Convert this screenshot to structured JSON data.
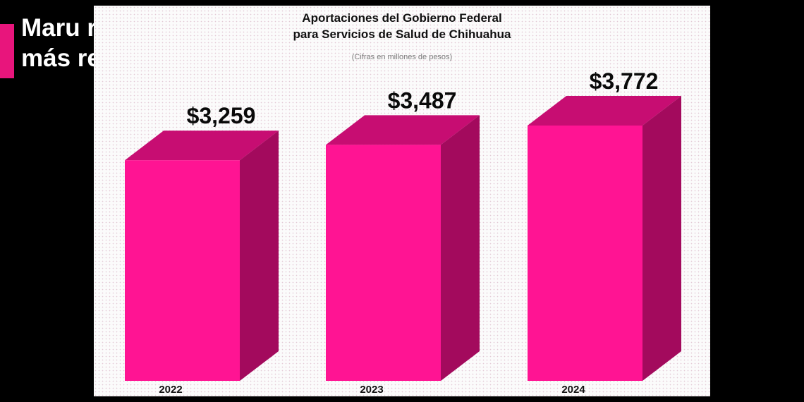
{
  "headline": {
    "line1": "Maru recibe",
    "line2": "más recursos"
  },
  "colors": {
    "accent": "#e8157c",
    "bar_front": "#ff1493",
    "bar_top": "#c70d72",
    "bar_side": "#a30a5d"
  },
  "chart_data": {
    "type": "bar",
    "title_line1": "Aportaciones del Gobierno Federal",
    "title_line2": "para Servicios de Salud de Chihuahua",
    "subtitle": "(Cifras en millones de pesos)",
    "categories": [
      "2022",
      "2023",
      "2024"
    ],
    "values": [
      3259,
      3487,
      3772
    ],
    "value_labels": [
      "$3,259",
      "$3,487",
      "$3,772"
    ],
    "xlabel": "",
    "ylabel": "",
    "grid": false,
    "legend": "none"
  }
}
